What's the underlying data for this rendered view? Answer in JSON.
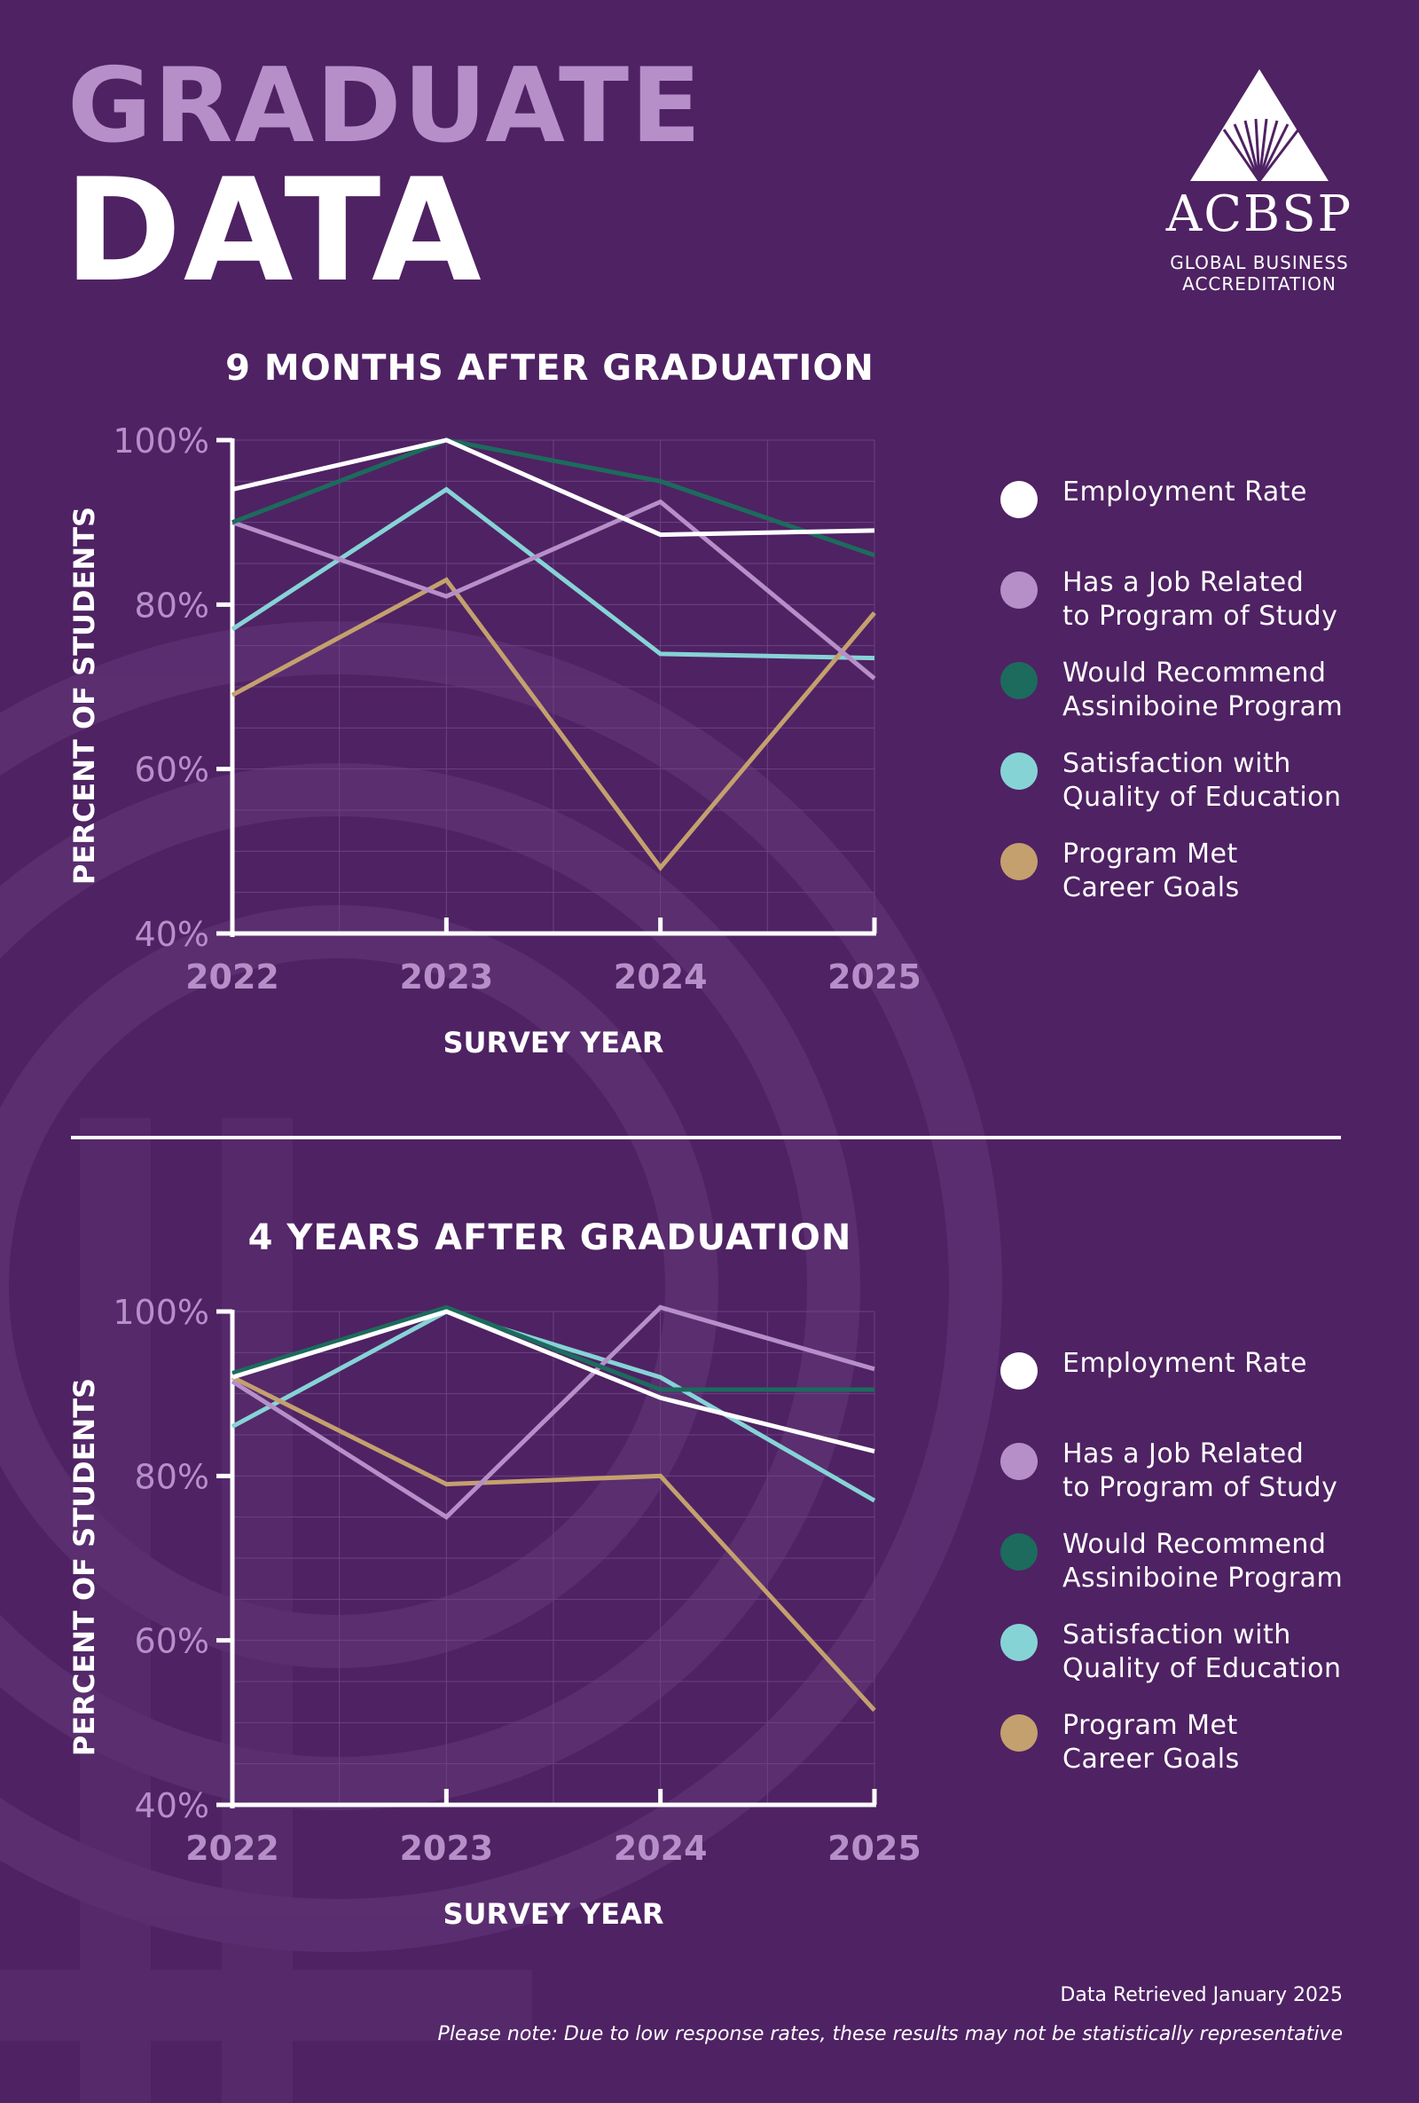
{
  "header": {
    "title_line1": "GRADUATE",
    "title_line2": "DATA"
  },
  "logo": {
    "name": "ACBSP",
    "subtitle_line1": "GLOBAL BUSINESS",
    "subtitle_line2": "ACCREDITATION"
  },
  "legend": {
    "items": [
      {
        "label": "Employment Rate",
        "color": "#ffffff"
      },
      {
        "label": "Has a Job Related\nto Program of Study",
        "color": "#b68fc9"
      },
      {
        "label": "Would Recommend\nAssiniboine Program",
        "color": "#1c6b5c"
      },
      {
        "label": "Satisfaction with\nQuality of Education",
        "color": "#86d3d6"
      },
      {
        "label": "Program Met\nCareer Goals",
        "color": "#c4a06e"
      }
    ]
  },
  "chart_data": [
    {
      "type": "line",
      "title": "9 MONTHS AFTER GRADUATION",
      "xlabel": "SURVEY YEAR",
      "ylabel": "PERCENT OF STUDENTS",
      "ylim": [
        40,
        100
      ],
      "yticks": [
        "40%",
        "60%",
        "80%",
        "100%"
      ],
      "categories": [
        "2022",
        "2023",
        "2024",
        "2025"
      ],
      "series": [
        {
          "name": "Employment Rate",
          "color": "#ffffff",
          "values": [
            94,
            100,
            88.5,
            89
          ]
        },
        {
          "name": "Has a Job Related to Program of Study",
          "color": "#b68fc9",
          "values": [
            90,
            81,
            92.5,
            71
          ]
        },
        {
          "name": "Would Recommend Assiniboine Program",
          "color": "#1c6b5c",
          "values": [
            90,
            100,
            95,
            86
          ]
        },
        {
          "name": "Satisfaction with Quality of Education",
          "color": "#86d3d6",
          "values": [
            77,
            94,
            74,
            73.5
          ]
        },
        {
          "name": "Program Met Career Goals",
          "color": "#c4a06e",
          "values": [
            69,
            83,
            48,
            79
          ]
        }
      ]
    },
    {
      "type": "line",
      "title": "4 YEARS AFTER GRADUATION",
      "xlabel": "SURVEY YEAR",
      "ylabel": "PERCENT OF STUDENTS",
      "ylim": [
        40,
        100
      ],
      "yticks": [
        "40%",
        "60%",
        "80%",
        "100%"
      ],
      "categories": [
        "2022",
        "2023",
        "2024",
        "2025"
      ],
      "series": [
        {
          "name": "Employment Rate",
          "color": "#ffffff",
          "values": [
            92,
            100,
            89.5,
            83
          ]
        },
        {
          "name": "Has a Job Related to Program of Study",
          "color": "#b68fc9",
          "values": [
            91.5,
            75,
            100.5,
            93
          ]
        },
        {
          "name": "Would Recommend Assiniboine Program",
          "color": "#1c6b5c",
          "values": [
            92.5,
            100.5,
            90.5,
            90.5
          ]
        },
        {
          "name": "Satisfaction with Quality of Education",
          "color": "#86d3d6",
          "values": [
            86,
            100,
            92,
            77
          ]
        },
        {
          "name": "Program Met Career Goals",
          "color": "#c4a06e",
          "values": [
            92,
            79,
            80,
            51.5
          ]
        }
      ]
    }
  ],
  "footer": {
    "retrieved": "Data Retrieved January 2025",
    "note": "Please note: Due to low response rates, these results may not be statistically representative"
  }
}
